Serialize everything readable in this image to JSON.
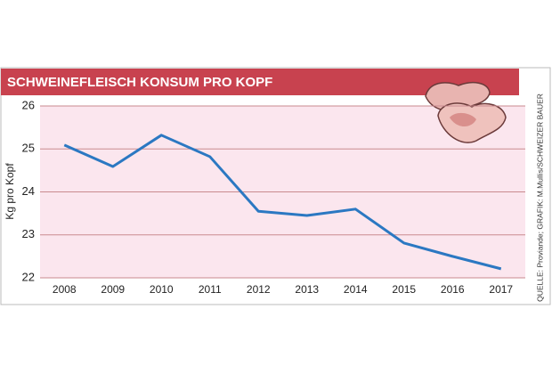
{
  "chart_data": {
    "type": "line",
    "title": "SCHWEINEFLEISCH KONSUM PRO KOPF",
    "y_label": "Kg pro Kopf",
    "source": "QUELLE: Proviande; GRAFIK: M.Mullis/SCHWEIZER BAUER",
    "categories": [
      "2008",
      "2009",
      "2010",
      "2011",
      "2012",
      "2013",
      "2014",
      "2015",
      "2016",
      "2017"
    ],
    "values": [
      25.09,
      24.59,
      25.32,
      24.82,
      23.55,
      23.45,
      23.6,
      22.81,
      22.5,
      22.21
    ],
    "color": "#2b78c2",
    "ylim": [
      22,
      26
    ],
    "yticks": [
      22,
      23,
      24,
      25,
      26
    ],
    "grid": true
  }
}
